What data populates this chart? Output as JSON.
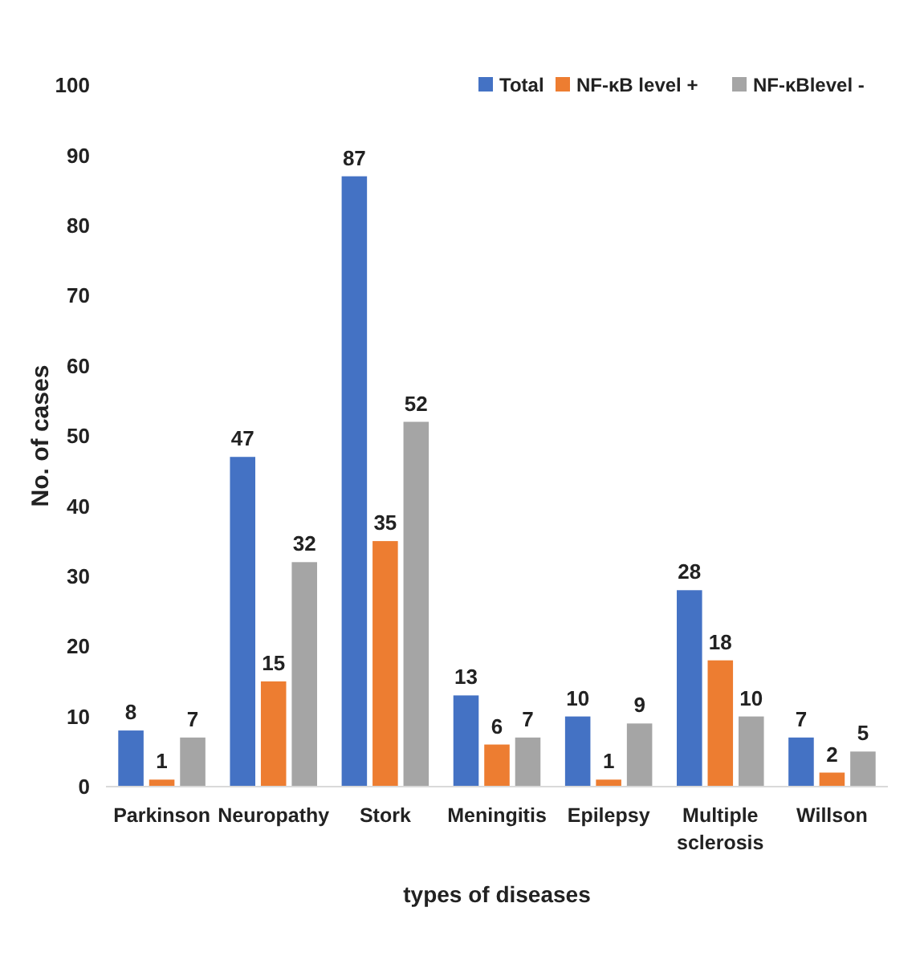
{
  "chart_data": {
    "type": "bar",
    "xlabel": "types of diseases",
    "ylabel": "No. of cases",
    "categories": [
      "Parkinson",
      "Neuropathy",
      "Stork",
      "Meningitis",
      "Epilepsy",
      "Multiple sclerosis",
      "Willson"
    ],
    "series": [
      {
        "name": "Total",
        "color": "#4472c4",
        "values": [
          8,
          47,
          87,
          13,
          10,
          28,
          7
        ]
      },
      {
        "name": "NF-κB level +",
        "color": "#ed7d31",
        "values": [
          1,
          15,
          35,
          6,
          1,
          18,
          2
        ]
      },
      {
        "name": "NF-κBlevel -",
        "color": "#a5a5a5",
        "values": [
          7,
          32,
          52,
          7,
          9,
          10,
          5
        ]
      }
    ],
    "ylim": [
      0,
      100
    ],
    "yticks": [
      0,
      10,
      20,
      30,
      40,
      50,
      60,
      70,
      80,
      90,
      100
    ],
    "data_labels": true,
    "legend": "top right",
    "grid": false
  }
}
